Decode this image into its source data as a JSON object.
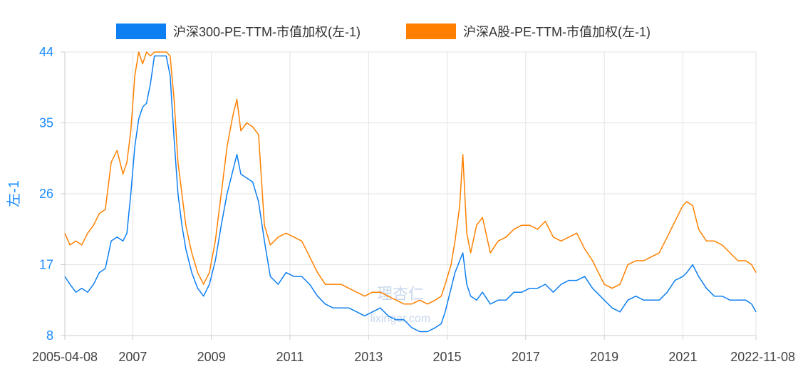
{
  "chart_data": {
    "type": "line",
    "ylabel": "左-1",
    "ylim": [
      8,
      44
    ],
    "yticks": [
      "44",
      "35",
      "26",
      "17",
      "8"
    ],
    "xlim": [
      2005.27,
      2022.86
    ],
    "xticks": [
      {
        "label": "2005-04-08",
        "x": 2005.27
      },
      {
        "label": "2007",
        "x": 2007.0
      },
      {
        "label": "2009",
        "x": 2009.0
      },
      {
        "label": "2011",
        "x": 2011.0
      },
      {
        "label": "2013",
        "x": 2013.0
      },
      {
        "label": "2015",
        "x": 2015.0
      },
      {
        "label": "2017",
        "x": 2017.0
      },
      {
        "label": "2019",
        "x": 2019.0
      },
      {
        "label": "2021",
        "x": 2021.0
      },
      {
        "label": "2022-11-08",
        "x": 2022.86
      }
    ],
    "grid": true,
    "legend_position": "top",
    "series": [
      {
        "name": "沪深300-PE-TTM-市值加权(左-1)",
        "color": "#0d7ff2",
        "x": [
          2005.27,
          2005.4,
          2005.55,
          2005.7,
          2005.85,
          2006.0,
          2006.15,
          2006.3,
          2006.45,
          2006.6,
          2006.75,
          2006.85,
          2006.95,
          2007.05,
          2007.15,
          2007.25,
          2007.35,
          2007.45,
          2007.55,
          2007.65,
          2007.75,
          2007.85,
          2007.95,
          2008.05,
          2008.15,
          2008.25,
          2008.35,
          2008.5,
          2008.65,
          2008.8,
          2008.95,
          2009.1,
          2009.25,
          2009.4,
          2009.55,
          2009.65,
          2009.75,
          2009.9,
          2010.05,
          2010.2,
          2010.35,
          2010.5,
          2010.7,
          2010.9,
          2011.1,
          2011.3,
          2011.5,
          2011.7,
          2011.9,
          2012.1,
          2012.3,
          2012.5,
          2012.7,
          2012.9,
          2013.1,
          2013.3,
          2013.5,
          2013.7,
          2013.9,
          2014.1,
          2014.3,
          2014.5,
          2014.7,
          2014.85,
          2014.95,
          2015.1,
          2015.2,
          2015.32,
          2015.4,
          2015.5,
          2015.6,
          2015.75,
          2015.9,
          2016.1,
          2016.3,
          2016.5,
          2016.7,
          2016.9,
          2017.1,
          2017.3,
          2017.5,
          2017.7,
          2017.9,
          2018.1,
          2018.3,
          2018.5,
          2018.7,
          2018.9,
          2019.0,
          2019.2,
          2019.4,
          2019.6,
          2019.8,
          2020.0,
          2020.2,
          2020.4,
          2020.6,
          2020.8,
          2021.0,
          2021.1,
          2021.25,
          2021.4,
          2021.6,
          2021.8,
          2022.0,
          2022.2,
          2022.4,
          2022.6,
          2022.75,
          2022.86
        ],
        "values": [
          15.5,
          14.5,
          13.5,
          14.0,
          13.5,
          14.5,
          16.0,
          16.5,
          20.0,
          20.5,
          20.0,
          21.0,
          26.0,
          32.0,
          35.5,
          37.0,
          37.5,
          40.0,
          43.5,
          43.5,
          43.5,
          43.5,
          41.0,
          33.0,
          26.0,
          22.0,
          19.0,
          16.0,
          14.0,
          13.0,
          14.5,
          17.5,
          22.0,
          26.0,
          29.0,
          31.0,
          28.5,
          28.0,
          27.5,
          25.0,
          20.0,
          15.5,
          14.5,
          16.0,
          15.5,
          15.5,
          14.5,
          13.0,
          12.0,
          11.5,
          11.5,
          11.5,
          11.0,
          10.5,
          11.0,
          11.5,
          10.5,
          10.0,
          10.0,
          9.0,
          8.5,
          8.5,
          9.0,
          9.5,
          11.0,
          14.0,
          16.0,
          17.5,
          18.5,
          14.5,
          13.0,
          12.5,
          13.5,
          12.0,
          12.5,
          12.5,
          13.5,
          13.5,
          14.0,
          14.0,
          14.5,
          13.5,
          14.5,
          15.0,
          15.0,
          15.5,
          14.0,
          13.0,
          12.5,
          11.5,
          11.0,
          12.5,
          13.0,
          12.5,
          12.5,
          12.5,
          13.5,
          15.0,
          15.5,
          16.0,
          17.0,
          15.5,
          14.0,
          13.0,
          13.0,
          12.5,
          12.5,
          12.5,
          12.0,
          11.0
        ]
      },
      {
        "name": "沪深A股-PE-TTM-市值加权(左-1)",
        "color": "#ff8000",
        "x": [
          2005.27,
          2005.4,
          2005.55,
          2005.7,
          2005.85,
          2006.0,
          2006.15,
          2006.3,
          2006.45,
          2006.6,
          2006.75,
          2006.85,
          2006.95,
          2007.05,
          2007.15,
          2007.25,
          2007.35,
          2007.45,
          2007.55,
          2007.65,
          2007.75,
          2007.85,
          2007.95,
          2008.05,
          2008.15,
          2008.25,
          2008.35,
          2008.5,
          2008.65,
          2008.8,
          2008.95,
          2009.1,
          2009.25,
          2009.4,
          2009.55,
          2009.65,
          2009.75,
          2009.9,
          2010.05,
          2010.2,
          2010.35,
          2010.5,
          2010.7,
          2010.9,
          2011.1,
          2011.3,
          2011.5,
          2011.7,
          2011.9,
          2012.1,
          2012.3,
          2012.5,
          2012.7,
          2012.9,
          2013.1,
          2013.3,
          2013.5,
          2013.7,
          2013.9,
          2014.1,
          2014.3,
          2014.5,
          2014.7,
          2014.85,
          2014.95,
          2015.1,
          2015.2,
          2015.32,
          2015.4,
          2015.5,
          2015.6,
          2015.75,
          2015.9,
          2016.1,
          2016.3,
          2016.5,
          2016.7,
          2016.9,
          2017.1,
          2017.3,
          2017.5,
          2017.7,
          2017.9,
          2018.1,
          2018.3,
          2018.5,
          2018.7,
          2018.9,
          2019.0,
          2019.2,
          2019.4,
          2019.6,
          2019.8,
          2020.0,
          2020.2,
          2020.4,
          2020.6,
          2020.8,
          2021.0,
          2021.1,
          2021.25,
          2021.4,
          2021.6,
          2021.8,
          2022.0,
          2022.2,
          2022.4,
          2022.6,
          2022.75,
          2022.86
        ],
        "values": [
          21.0,
          19.5,
          20.0,
          19.5,
          21.0,
          22.0,
          23.5,
          24.0,
          30.0,
          31.5,
          28.5,
          30.0,
          34.0,
          41.0,
          44.0,
          42.5,
          44.0,
          43.5,
          44.0,
          44.0,
          44.0,
          44.0,
          43.5,
          38.0,
          30.0,
          26.0,
          22.0,
          18.5,
          16.0,
          14.5,
          16.0,
          20.0,
          26.0,
          32.0,
          36.0,
          38.0,
          34.0,
          35.0,
          34.5,
          33.5,
          22.0,
          19.5,
          20.5,
          21.0,
          20.5,
          20.0,
          18.0,
          16.0,
          14.5,
          14.5,
          14.5,
          14.0,
          13.5,
          13.0,
          13.5,
          13.5,
          13.0,
          12.5,
          12.0,
          12.0,
          12.5,
          12.0,
          12.5,
          13.0,
          14.5,
          17.0,
          20.0,
          24.5,
          31.0,
          21.0,
          18.5,
          22.0,
          23.0,
          18.5,
          20.0,
          20.5,
          21.5,
          22.0,
          22.0,
          21.5,
          22.5,
          20.5,
          20.0,
          20.5,
          21.0,
          19.0,
          17.5,
          15.5,
          14.5,
          14.0,
          14.5,
          17.0,
          17.5,
          17.5,
          18.0,
          18.5,
          20.5,
          22.5,
          24.5,
          25.0,
          24.5,
          21.5,
          20.0,
          20.0,
          19.5,
          18.5,
          17.5,
          17.5,
          17.0,
          16.0
        ]
      }
    ]
  },
  "watermark": {
    "cn": "理杏仁",
    "url": "lixinger.com"
  }
}
